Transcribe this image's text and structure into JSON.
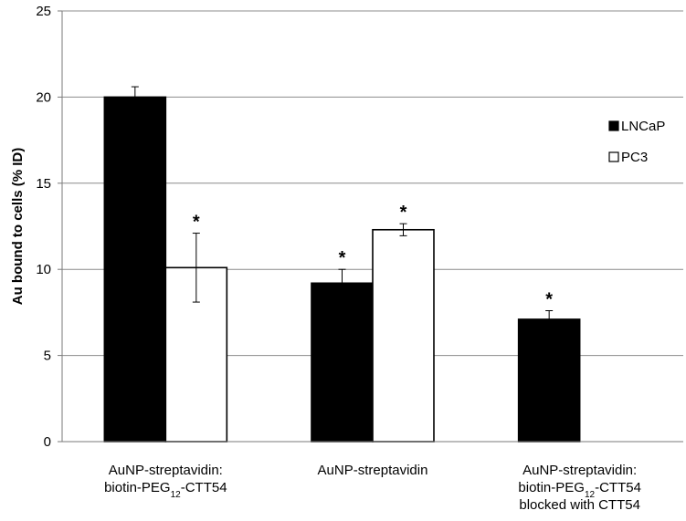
{
  "chart_data": {
    "type": "bar",
    "ylabel": "Au bound to cells (% ID)",
    "ylim": [
      0,
      25
    ],
    "yticks": [
      0,
      5,
      10,
      15,
      20,
      25
    ],
    "grid": true,
    "legend_position": "right",
    "categories": [
      {
        "lines": [
          {
            "text": "AuNP-streptavidin:"
          },
          {
            "pre": "biotin-PEG",
            "sub": "12",
            "post": "-CTT54"
          }
        ]
      },
      {
        "lines": [
          {
            "text": "AuNP-streptavidin"
          }
        ]
      },
      {
        "lines": [
          {
            "text": "AuNP-streptavidin:"
          },
          {
            "pre": "biotin-PEG",
            "sub": "12",
            "post": "-CTT54"
          },
          {
            "text": "blocked with CTT54"
          }
        ]
      }
    ],
    "series": [
      {
        "name": "LNCaP",
        "color": "#000000",
        "values": [
          20.0,
          9.2,
          7.1
        ],
        "errors": [
          0.6,
          0.8,
          0.5
        ],
        "significant": [
          false,
          true,
          true
        ]
      },
      {
        "name": "PC3",
        "color": "#ffffff",
        "values": [
          10.1,
          12.3,
          null
        ],
        "errors": [
          2.0,
          0.35,
          null
        ],
        "significant": [
          true,
          true,
          false
        ]
      }
    ],
    "significance_marker": "*"
  }
}
